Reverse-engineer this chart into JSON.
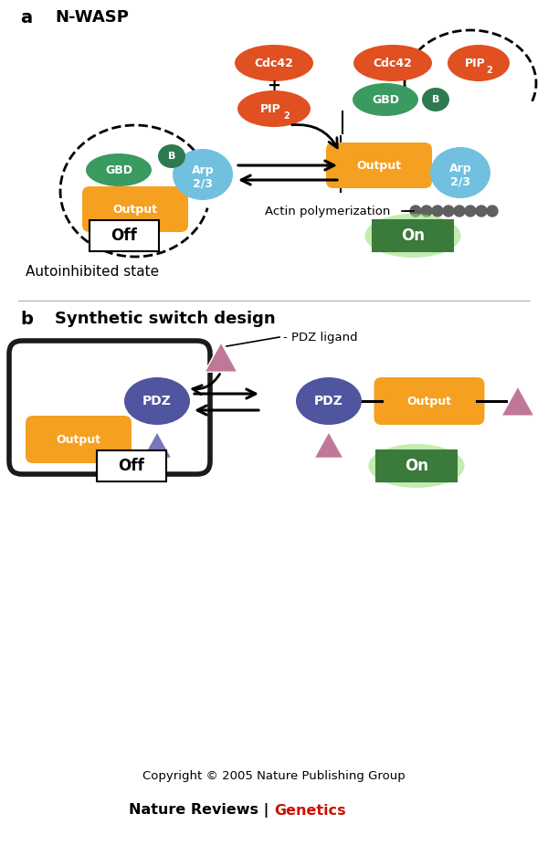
{
  "title_a": "N-WASP",
  "title_b": "Synthetic switch design",
  "label_a": "a",
  "label_b": "b",
  "colors": {
    "orange": "#F5A020",
    "green_dark": "#2E7A50",
    "green_medium": "#3A9A60",
    "blue_light": "#72C0E0",
    "red_orange": "#E05020",
    "purple_dark": "#5055A0",
    "purple_light": "#C07898",
    "purple_tri_dark": "#7878B8",
    "green_box": "#3A7A3A",
    "green_glow": "#90DD70"
  },
  "copyright": "Copyright © 2005 Nature Publishing Group",
  "journal_black": "Nature Reviews | ",
  "journal_red": "Genetics"
}
